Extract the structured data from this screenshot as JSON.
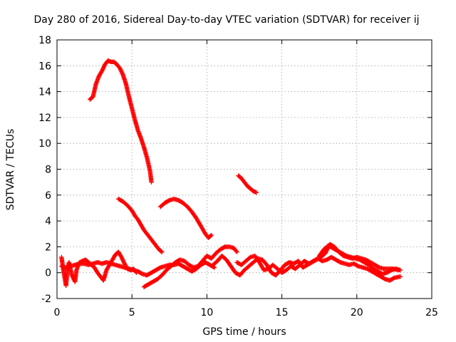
{
  "chart_data": {
    "type": "scatter",
    "title": "Day 280 of 2016, Sidereal Day-to-day VTEC variation (SDTVAR) for receiver ij",
    "xlabel": "GPS time / hours",
    "ylabel": "SDTVAR / TECUs",
    "xlim": [
      0,
      25
    ],
    "ylim": [
      -2,
      18
    ],
    "xticks": [
      "0",
      "5",
      "10",
      "15",
      "20",
      "25"
    ],
    "yticks": [
      "-2",
      "0",
      "2",
      "4",
      "6",
      "8",
      "10",
      "12",
      "14",
      "16",
      "18"
    ],
    "grid": true,
    "marker": "plus",
    "color": "#ff0000",
    "series": [
      {
        "points": [
          [
            2.2,
            13.4
          ],
          [
            2.4,
            13.6
          ],
          [
            2.6,
            14.6
          ],
          [
            2.8,
            15.2
          ],
          [
            3.0,
            15.6
          ],
          [
            3.2,
            16.1
          ],
          [
            3.4,
            16.4
          ],
          [
            3.6,
            16.3
          ],
          [
            3.8,
            16.3
          ],
          [
            4.0,
            16.1
          ],
          [
            4.2,
            15.8
          ],
          [
            4.4,
            15.3
          ],
          [
            4.6,
            14.6
          ],
          [
            4.8,
            13.6
          ],
          [
            5.0,
            12.7
          ],
          [
            5.2,
            11.8
          ],
          [
            5.4,
            11.0
          ],
          [
            5.6,
            10.4
          ],
          [
            5.8,
            9.7
          ],
          [
            6.0,
            8.9
          ],
          [
            6.2,
            7.9
          ],
          [
            6.3,
            7.0
          ]
        ]
      },
      {
        "points": [
          [
            12.1,
            7.5
          ],
          [
            12.3,
            7.3
          ],
          [
            12.5,
            7.0
          ],
          [
            12.7,
            6.7
          ],
          [
            12.9,
            6.5
          ],
          [
            13.1,
            6.3
          ],
          [
            13.3,
            6.2
          ]
        ]
      },
      {
        "points": [
          [
            4.1,
            5.7
          ],
          [
            4.4,
            5.5
          ],
          [
            4.7,
            5.2
          ],
          [
            5.0,
            4.8
          ],
          [
            5.2,
            4.4
          ],
          [
            5.4,
            4.1
          ],
          [
            5.6,
            3.7
          ],
          [
            5.8,
            3.3
          ],
          [
            6.0,
            3.0
          ],
          [
            6.2,
            2.7
          ],
          [
            6.4,
            2.4
          ],
          [
            6.6,
            2.1
          ],
          [
            6.8,
            1.8
          ],
          [
            7.0,
            1.6
          ]
        ]
      },
      {
        "points": [
          [
            6.9,
            5.1
          ],
          [
            7.2,
            5.4
          ],
          [
            7.5,
            5.6
          ],
          [
            7.8,
            5.7
          ],
          [
            8.1,
            5.6
          ],
          [
            8.4,
            5.4
          ],
          [
            8.7,
            5.1
          ],
          [
            9.0,
            4.7
          ],
          [
            9.3,
            4.2
          ],
          [
            9.6,
            3.6
          ],
          [
            9.9,
            3.0
          ],
          [
            10.1,
            2.7
          ],
          [
            10.3,
            2.9
          ]
        ]
      },
      {
        "points": [
          [
            0.3,
            1.2
          ],
          [
            0.4,
            0.4
          ],
          [
            0.5,
            -0.3
          ],
          [
            0.6,
            -1.0
          ],
          [
            0.7,
            0.1
          ],
          [
            0.8,
            0.8
          ],
          [
            1.0,
            -0.2
          ],
          [
            1.2,
            -0.7
          ],
          [
            1.3,
            0.2
          ],
          [
            1.5,
            0.8
          ],
          [
            1.7,
            0.9
          ],
          [
            1.9,
            1.0
          ],
          [
            2.1,
            0.8
          ],
          [
            2.3,
            0.6
          ],
          [
            2.5,
            0.4
          ],
          [
            2.7,
            0.0
          ],
          [
            2.9,
            -0.3
          ],
          [
            3.1,
            -0.6
          ],
          [
            3.3,
            0.2
          ],
          [
            3.5,
            0.6
          ],
          [
            3.7,
            1.0
          ],
          [
            3.9,
            1.4
          ],
          [
            4.1,
            1.6
          ],
          [
            4.3,
            1.2
          ],
          [
            4.5,
            0.7
          ],
          [
            4.7,
            0.3
          ],
          [
            4.9,
            0.2
          ],
          [
            5.1,
            0.3
          ],
          [
            5.3,
            0.0
          ]
        ]
      },
      {
        "points": [
          [
            0.3,
            0.5
          ],
          [
            0.6,
            0.4
          ],
          [
            0.9,
            0.5
          ],
          [
            1.2,
            0.6
          ],
          [
            1.5,
            0.7
          ],
          [
            1.8,
            0.7
          ],
          [
            2.1,
            0.6
          ],
          [
            2.4,
            0.7
          ],
          [
            2.7,
            0.8
          ],
          [
            3.0,
            0.7
          ],
          [
            3.3,
            0.8
          ],
          [
            3.6,
            0.7
          ],
          [
            3.9,
            0.6
          ],
          [
            4.2,
            0.5
          ],
          [
            4.5,
            0.4
          ],
          [
            4.8,
            0.3
          ],
          [
            5.1,
            0.2
          ],
          [
            5.4,
            0.1
          ],
          [
            5.7,
            -0.1
          ],
          [
            6.0,
            -0.2
          ],
          [
            6.3,
            0.0
          ],
          [
            6.6,
            0.2
          ],
          [
            6.9,
            0.4
          ],
          [
            7.2,
            0.5
          ],
          [
            7.5,
            0.6
          ],
          [
            7.8,
            0.6
          ],
          [
            8.1,
            0.7
          ],
          [
            8.4,
            0.5
          ],
          [
            8.7,
            0.3
          ],
          [
            9.0,
            0.1
          ],
          [
            9.3,
            0.3
          ],
          [
            9.6,
            0.6
          ],
          [
            9.9,
            0.8
          ],
          [
            10.2,
            0.6
          ],
          [
            10.5,
            0.4
          ]
        ]
      },
      {
        "points": [
          [
            5.8,
            -1.1
          ],
          [
            6.1,
            -0.9
          ],
          [
            6.4,
            -0.7
          ],
          [
            6.7,
            -0.5
          ],
          [
            7.0,
            -0.2
          ],
          [
            7.3,
            0.2
          ],
          [
            7.6,
            0.5
          ],
          [
            7.9,
            0.8
          ],
          [
            8.2,
            1.0
          ],
          [
            8.5,
            0.9
          ],
          [
            8.8,
            0.6
          ],
          [
            9.1,
            0.4
          ],
          [
            9.4,
            0.5
          ],
          [
            9.7,
            0.9
          ],
          [
            10.0,
            1.3
          ],
          [
            10.3,
            1.1
          ],
          [
            10.6,
            1.5
          ],
          [
            10.9,
            1.8
          ],
          [
            11.2,
            2.0
          ],
          [
            11.5,
            2.0
          ],
          [
            11.8,
            1.9
          ],
          [
            12.0,
            1.6
          ]
        ]
      },
      {
        "points": [
          [
            10.4,
            0.6
          ],
          [
            10.7,
            0.9
          ],
          [
            11.0,
            1.3
          ],
          [
            11.3,
            1.0
          ],
          [
            11.6,
            0.5
          ],
          [
            11.9,
            0.0
          ],
          [
            12.2,
            -0.2
          ],
          [
            12.5,
            0.2
          ],
          [
            12.8,
            0.5
          ],
          [
            13.1,
            0.8
          ],
          [
            13.4,
            1.1
          ],
          [
            13.7,
            1.0
          ],
          [
            14.0,
            0.6
          ],
          [
            14.3,
            0.0
          ],
          [
            14.6,
            -0.2
          ],
          [
            14.9,
            0.2
          ],
          [
            15.2,
            0.6
          ],
          [
            15.5,
            0.8
          ],
          [
            15.8,
            0.7
          ],
          [
            16.1,
            0.9
          ],
          [
            16.4,
            0.4
          ],
          [
            16.7,
            0.6
          ],
          [
            17.0,
            0.8
          ],
          [
            17.3,
            1.0
          ],
          [
            17.6,
            1.2
          ],
          [
            17.9,
            1.5
          ],
          [
            18.2,
            2.2
          ],
          [
            18.5,
            2.0
          ],
          [
            18.8,
            1.6
          ],
          [
            19.1,
            1.3
          ],
          [
            19.4,
            1.2
          ],
          [
            19.7,
            1.1
          ],
          [
            20.0,
            1.2
          ],
          [
            20.3,
            1.1
          ],
          [
            20.6,
            1.0
          ],
          [
            20.9,
            0.8
          ],
          [
            21.2,
            0.6
          ],
          [
            21.5,
            0.4
          ],
          [
            21.8,
            0.3
          ],
          [
            22.1,
            0.3
          ],
          [
            22.4,
            0.3
          ],
          [
            22.8,
            0.2
          ]
        ]
      },
      {
        "points": [
          [
            12.0,
            0.8
          ],
          [
            12.3,
            0.6
          ],
          [
            12.6,
            0.9
          ],
          [
            12.9,
            1.2
          ],
          [
            13.2,
            1.3
          ],
          [
            13.5,
            0.8
          ],
          [
            13.8,
            0.2
          ],
          [
            14.1,
            0.3
          ],
          [
            14.4,
            0.6
          ],
          [
            14.7,
            0.3
          ],
          [
            15.0,
            0.0
          ],
          [
            15.3,
            0.2
          ],
          [
            15.6,
            0.5
          ],
          [
            15.9,
            0.3
          ],
          [
            16.2,
            0.6
          ],
          [
            16.5,
            0.9
          ],
          [
            16.8,
            0.7
          ],
          [
            17.1,
            0.9
          ],
          [
            17.4,
            1.1
          ],
          [
            17.7,
            0.9
          ],
          [
            18.0,
            1.0
          ],
          [
            18.3,
            1.2
          ],
          [
            18.6,
            1.0
          ],
          [
            18.9,
            0.8
          ],
          [
            19.2,
            0.7
          ],
          [
            19.5,
            0.6
          ],
          [
            19.8,
            0.7
          ],
          [
            20.1,
            0.5
          ],
          [
            20.4,
            0.4
          ],
          [
            20.7,
            0.3
          ],
          [
            21.0,
            0.1
          ],
          [
            21.3,
            -0.1
          ],
          [
            21.6,
            -0.3
          ],
          [
            21.9,
            -0.5
          ],
          [
            22.2,
            -0.6
          ],
          [
            22.5,
            -0.4
          ],
          [
            22.9,
            -0.3
          ]
        ]
      },
      {
        "points": [
          [
            17.5,
            1.3
          ],
          [
            17.8,
            1.8
          ],
          [
            18.1,
            2.1
          ],
          [
            18.4,
            1.9
          ],
          [
            18.7,
            1.7
          ],
          [
            19.0,
            1.5
          ],
          [
            19.3,
            1.3
          ],
          [
            19.6,
            1.2
          ],
          [
            19.9,
            1.1
          ],
          [
            20.2,
            1.0
          ],
          [
            20.5,
            0.8
          ],
          [
            20.8,
            0.6
          ],
          [
            21.1,
            0.3
          ],
          [
            21.4,
            0.1
          ],
          [
            21.7,
            -0.1
          ],
          [
            22.0,
            0.0
          ],
          [
            22.3,
            0.2
          ],
          [
            22.6,
            0.3
          ],
          [
            22.9,
            0.2
          ]
        ]
      }
    ]
  }
}
